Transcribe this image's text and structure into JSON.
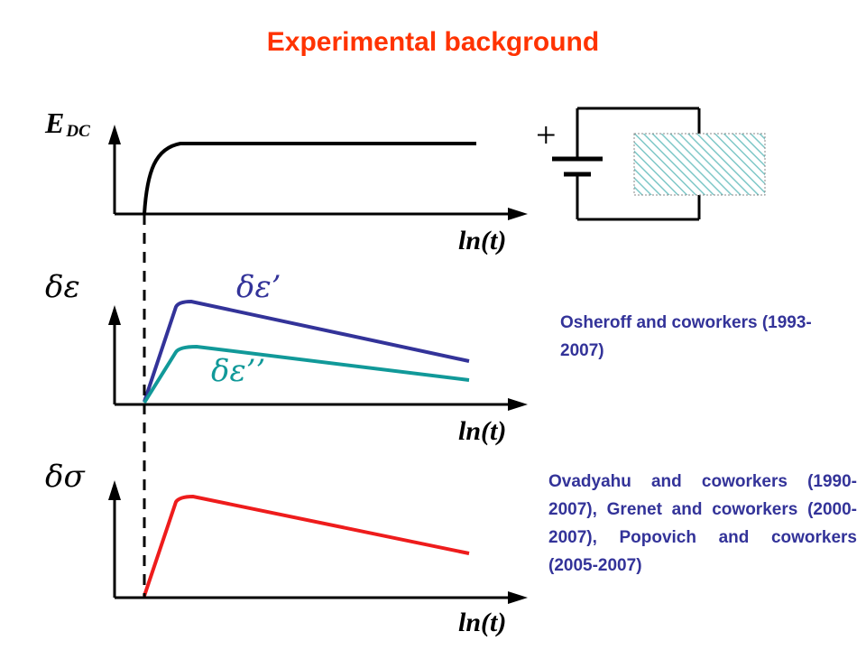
{
  "title": "Experimental background",
  "panels": {
    "field": {
      "ylabel_main": "E",
      "ylabel_sub": "DC",
      "xlabel": "ln(t)"
    },
    "permittivity": {
      "ylabel": "δε",
      "xlabel": "ln(t)",
      "real_label": "δε’",
      "imag_label": "δε’’"
    },
    "conductance": {
      "ylabel": "δσ",
      "xlabel": "ln(t)"
    }
  },
  "circuit": {
    "battery_polarity": "+"
  },
  "notes": {
    "osheroff": "Osheroff and coworkers (1993-2007)",
    "others": "Ovadyahu and coworkers (1990-2007), Grenet and coworkers (2000-2007), Popovich and coworkers (2005-2007)"
  },
  "colors": {
    "title": "#ff3300",
    "axes": "#000000",
    "field_curve": "#000000",
    "real_curve": "#333399",
    "imag_curve": "#119999",
    "sigma_curve": "#ee1c1c",
    "notes_text": "#333399",
    "sample_hatch": "#7fc8c8"
  }
}
